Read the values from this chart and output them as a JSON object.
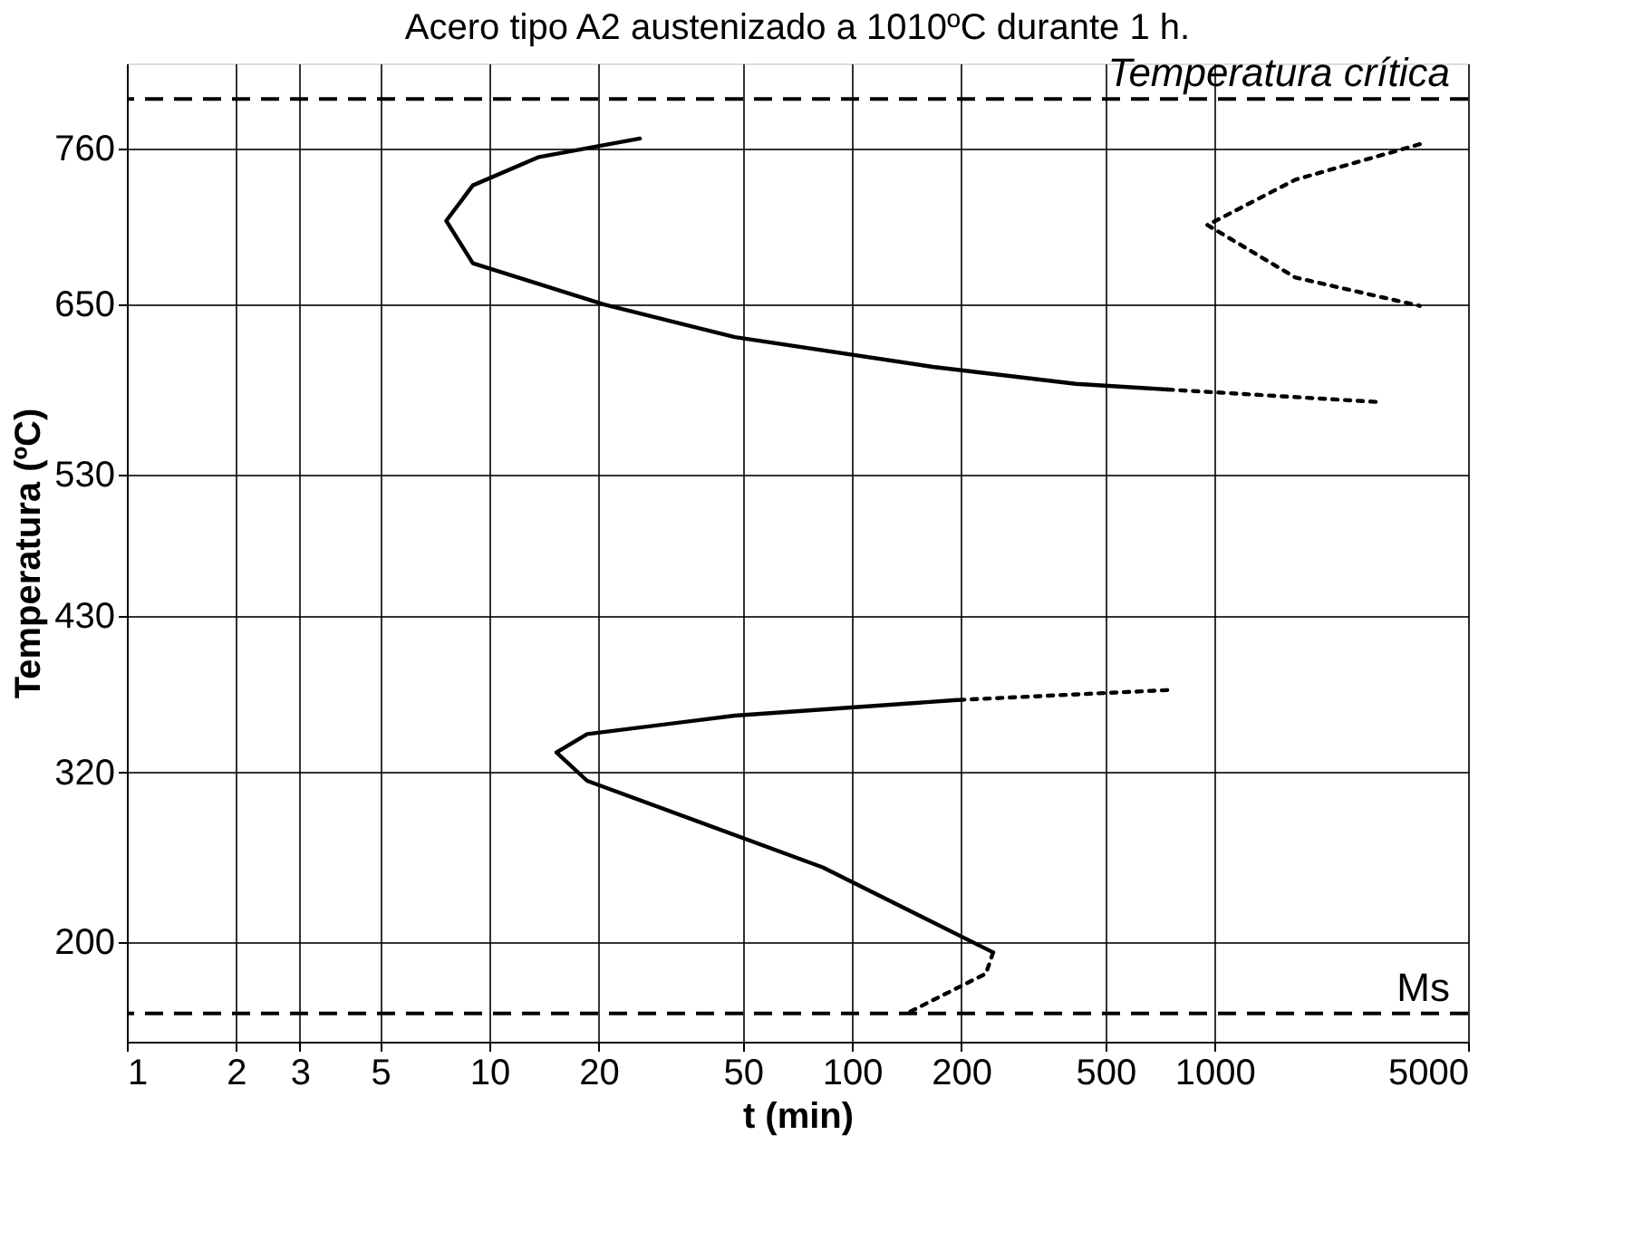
{
  "chart_data": {
    "type": "line",
    "title": "Acero tipo A2 austenizado a 1010ºC durante 1 h.",
    "xlabel": "t (min)",
    "ylabel": "Temperatura (ºC)",
    "log": "x",
    "xlim": [
      1,
      5000
    ],
    "xticks": [
      1,
      2,
      3,
      5,
      10,
      20,
      50,
      100,
      200,
      500,
      1000,
      5000
    ],
    "ylim": [
      130,
      820
    ],
    "yticks": [
      200,
      320,
      430,
      530,
      650,
      760
    ],
    "grid": true,
    "marker": "none",
    "series": [
      {
        "color": "#000000",
        "line_style": "solid",
        "x": [
          26,
          13.7,
          9.0,
          7.6,
          9.0,
          20.7,
          47.5,
          167,
          414,
          742
        ],
        "values": [
          767,
          754,
          734,
          709,
          679,
          650,
          627,
          606,
          594,
          590
        ]
      },
      {
        "color": "#000000",
        "line_style": "dotted",
        "x": [
          742,
          2910
        ],
        "values": [
          590,
          581
        ]
      },
      {
        "color": "#000000",
        "line_style": "dotted",
        "x": [
          3680,
          1670,
          955,
          1670,
          3680
        ],
        "values": [
          763,
          738,
          706,
          669,
          649
        ]
      },
      {
        "color": "#000000",
        "line_style": "dotted",
        "x": [
          740,
          195
        ],
        "values": [
          378,
          371
        ]
      },
      {
        "color": "#000000",
        "line_style": "solid",
        "x": [
          195,
          47.5,
          18.6,
          15.3,
          18.6,
          83,
          245
        ],
        "values": [
          371,
          360,
          347,
          334,
          314,
          253,
          193
        ]
      },
      {
        "color": "#000000",
        "line_style": "dotted",
        "x": [
          245,
          234,
          144
        ],
        "values": [
          193,
          178,
          151
        ]
      }
    ],
    "ref_lines": [
      {
        "axis": "y",
        "value": 795,
        "label": "Temperatura crítica",
        "line_style": "dashed",
        "color": "#000000"
      },
      {
        "axis": "y",
        "value": 150,
        "label": "Ms",
        "line_style": "dashed",
        "color": "#000000"
      }
    ]
  }
}
